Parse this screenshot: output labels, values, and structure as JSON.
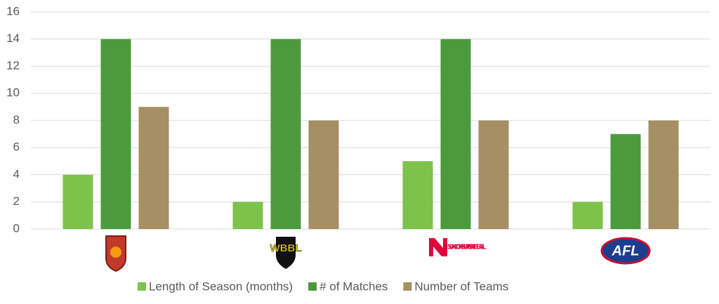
{
  "chart_data": {
    "type": "bar",
    "categories": [
      null,
      "WBBL",
      "SUNCORP SUPER NETBALL",
      "AFL"
    ],
    "series": [
      {
        "name": "Length of Season (months)",
        "color": "#7dc24b",
        "values": [
          4,
          2,
          5,
          2
        ]
      },
      {
        "name": "# of Matches",
        "color": "#4b9b3d",
        "values": [
          14,
          14,
          14,
          7
        ]
      },
      {
        "name": "Number of Teams",
        "color": "#a58f63",
        "values": [
          9,
          8,
          8,
          8
        ]
      }
    ],
    "ylim": [
      0,
      16
    ],
    "yticks": [
      0,
      2,
      4,
      6,
      8,
      10,
      12,
      14,
      16
    ],
    "grid": true,
    "legend": "bottom"
  }
}
